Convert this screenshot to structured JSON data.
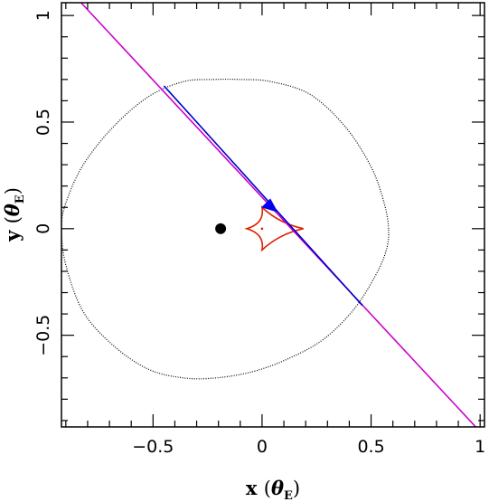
{
  "chart_data": {
    "type": "line",
    "xlabel": "x (θE)",
    "ylabel": "y (θE)",
    "axis_title_parts": {
      "x": {
        "letter": "x",
        "theta": "θ",
        "sub": "E"
      },
      "y": {
        "letter": "y",
        "theta": "θ",
        "sub": "E"
      }
    },
    "xlim": [
      -0.92,
      1.02
    ],
    "ylim": [
      -0.93,
      1.06
    ],
    "xticks_major": [
      -0.5,
      0,
      0.5,
      1
    ],
    "xtick_labels": [
      "−0.5",
      "0",
      "0.5",
      "1"
    ],
    "yticks_major": [
      -0.5,
      0,
      0.5,
      1
    ],
    "ytick_labels": [
      "−0.5",
      "0",
      "0.5",
      "1"
    ],
    "minor_tick_step": 0.1,
    "grid": false,
    "series": [
      {
        "kind": "critical-curve",
        "color": "#000000",
        "style": "dotted",
        "x": [
          0.58,
          0.56,
          0.5,
          0.38,
          0.22,
          0.04,
          -0.1,
          -0.22,
          -0.36,
          -0.52,
          -0.68,
          -0.82,
          -0.9,
          -0.92,
          -0.9,
          -0.82,
          -0.68,
          -0.52,
          -0.36,
          -0.21,
          -0.04,
          0.12,
          0.28,
          0.42,
          0.52,
          0.57,
          0.58
        ],
        "y": [
          0.0,
          0.12,
          0.29,
          0.48,
          0.63,
          0.69,
          0.7,
          0.7,
          0.69,
          0.62,
          0.48,
          0.3,
          0.12,
          0.0,
          -0.17,
          -0.39,
          -0.55,
          -0.66,
          -0.7,
          -0.7,
          -0.67,
          -0.61,
          -0.52,
          -0.38,
          -0.22,
          -0.1,
          0.0
        ]
      },
      {
        "kind": "caustic",
        "color": "#dd2200",
        "style": "solid",
        "cusps": [
          [
            0.19,
            0.0
          ],
          [
            0.0,
            0.1
          ],
          [
            -0.07,
            0.0
          ],
          [
            0.0,
            -0.1
          ]
        ]
      },
      {
        "kind": "source-trajectory",
        "color": "#cc00cc",
        "style": "solid",
        "x": [
          -0.83,
          0.98
        ],
        "y": [
          1.06,
          -0.93
        ]
      },
      {
        "kind": "source-trajectory-highlight",
        "color": "#0000cc",
        "style": "solid",
        "x": [
          -0.45,
          0.46
        ],
        "y": [
          0.67,
          -0.36
        ]
      }
    ],
    "markers": [
      {
        "kind": "lens-primary",
        "shape": "filled-circle",
        "color": "#000000",
        "x": -0.19,
        "y": 0.0
      },
      {
        "kind": "lens-companion",
        "shape": "dot",
        "color": "#dd2200",
        "x": 0.0,
        "y": 0.0
      },
      {
        "kind": "direction-arrow",
        "shape": "arrowhead",
        "color": "#0000ee",
        "x": 0.04,
        "y": 0.11,
        "angle_deg": 135
      }
    ]
  }
}
